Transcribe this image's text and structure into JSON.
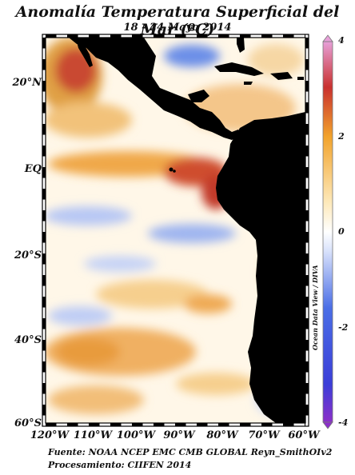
{
  "title": "Anomalía Temperatura Superficial del Mar (ºC)",
  "subtitle": "18 - 24 Mayo 2014",
  "y_axis_labels": [
    "20°N",
    "EQ",
    "20°S",
    "40°S",
    "60°S"
  ],
  "x_axis_labels": [
    "120°W",
    "110°W",
    "100°W",
    "90°W",
    "80°W",
    "70°W",
    "60°W"
  ],
  "colorbar": {
    "labels": [
      "4",
      "2",
      "0",
      "-2",
      "-4"
    ],
    "range": [
      -4,
      4
    ],
    "colors": [
      "#8b2fc9",
      "#1f3fd6",
      "#ffffff",
      "#f2a32c",
      "#b01b2e",
      "#e7a0d8"
    ]
  },
  "credit": "Ocean Data View / DIVA",
  "footer": {
    "source": "Fuente: NOAA NCEP EMC CMB GLOBAL Reyn_SmithOIv2",
    "processing": "Procesamiento: CIIFEN 2014"
  },
  "colors": {
    "land": "#000000",
    "warm": "#f2a32c",
    "hot": "#c93a2a",
    "cool": "#9db3ef",
    "cold": "#3c64e0",
    "neutral": "#fffaf0"
  }
}
